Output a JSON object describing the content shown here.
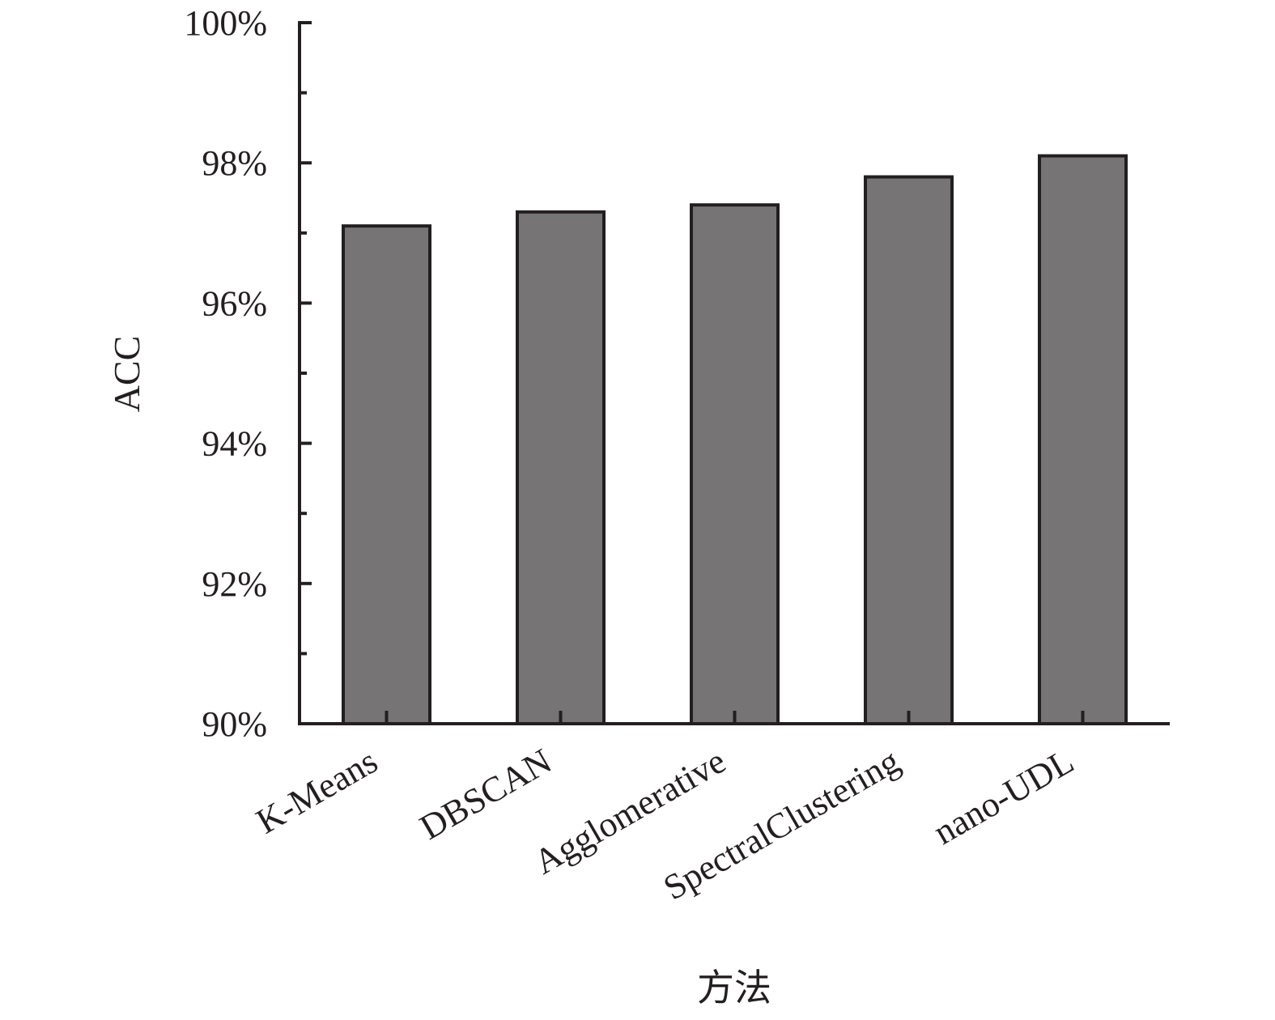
{
  "chart_data": {
    "type": "bar",
    "title": "",
    "xlabel": "方法",
    "ylabel": "ACC",
    "categories": [
      "K-Means",
      "DBSCAN",
      "Agglomerative",
      "SpectralClustering",
      "nano-UDL"
    ],
    "values": [
      97.1,
      97.3,
      97.4,
      97.8,
      98.1
    ],
    "ylim": [
      90,
      100
    ],
    "yticks": [
      90,
      92,
      94,
      96,
      98,
      100
    ],
    "ytick_labels": [
      "90%",
      "92%",
      "94%",
      "96%",
      "98%",
      "100%"
    ],
    "y_minor_step": 1,
    "grid": false,
    "legend": "none",
    "colors": {
      "bar_fill": "#767474",
      "bar_stroke": "#231f20",
      "axis": "#231f20"
    }
  }
}
